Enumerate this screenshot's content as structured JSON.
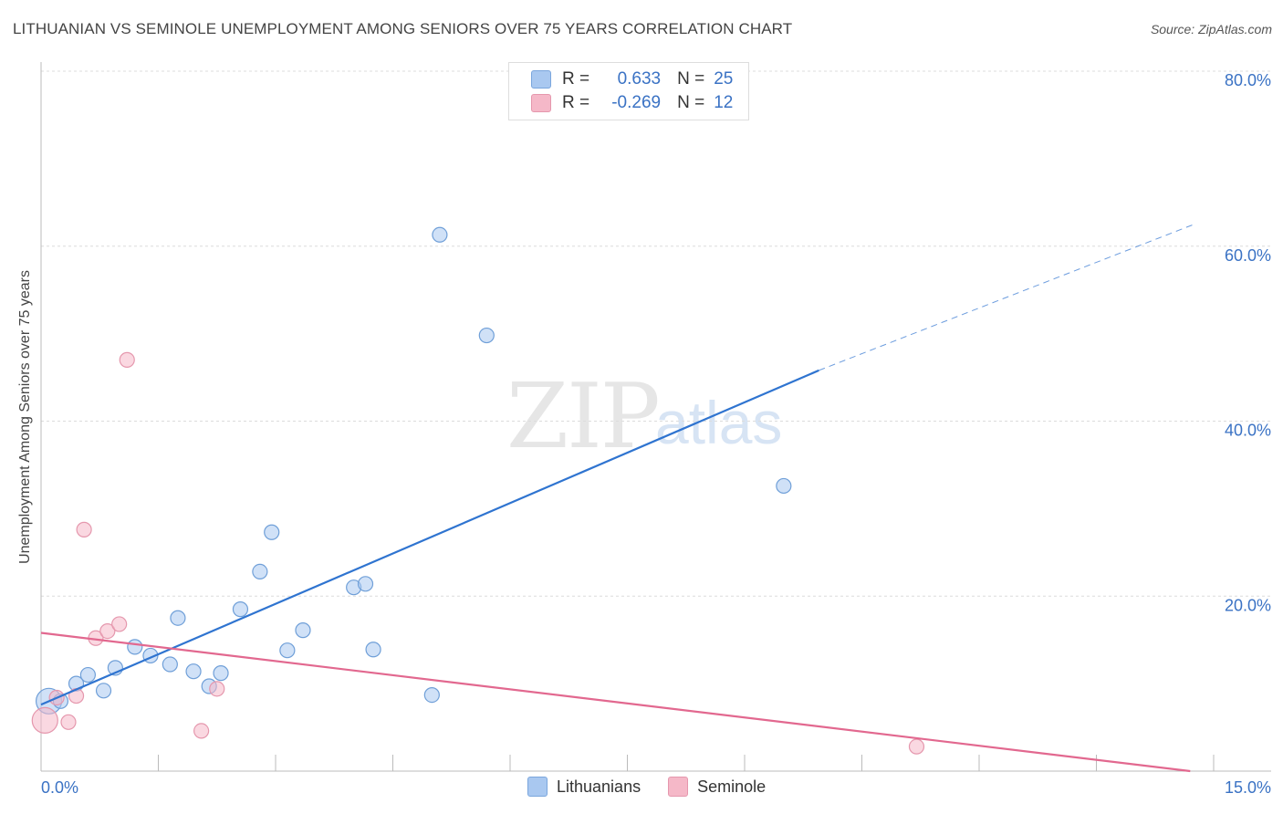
{
  "header": {
    "title": "LITHUANIAN VS SEMINOLE UNEMPLOYMENT AMONG SENIORS OVER 75 YEARS CORRELATION CHART",
    "source": "Source: ZipAtlas.com"
  },
  "watermark": {
    "part1": "ZIP",
    "part2": "atlas"
  },
  "legend": {
    "rows": [
      {
        "r_label": "R =",
        "r_value": "0.633",
        "n_label": "N =",
        "n_value": "25",
        "color": "#a9c8f0"
      },
      {
        "r_label": "R =",
        "r_value": "-0.269",
        "n_label": "N =",
        "n_value": "12",
        "color": "#f5b8c8"
      }
    ]
  },
  "bottom_legend": {
    "items": [
      {
        "label": "Lithuanians",
        "color": "#a9c8f0"
      },
      {
        "label": "Seminole",
        "color": "#f5b8c8"
      }
    ]
  },
  "chart_data": {
    "type": "scatter",
    "title": "LITHUANIAN VS SEMINOLE UNEMPLOYMENT AMONG SENIORS OVER 75 YEARS CORRELATION CHART",
    "xlabel": "",
    "ylabel": "Unemployment Among Seniors over 75 years",
    "xlim": [
      0,
      15
    ],
    "ylim": [
      0,
      80
    ],
    "x_tick_labels": [
      {
        "value": 0,
        "label": "0.0%"
      },
      {
        "value": 15,
        "label": "15.0%"
      }
    ],
    "y_tick_labels": [
      {
        "value": 20,
        "label": "20.0%"
      },
      {
        "value": 40,
        "label": "40.0%"
      },
      {
        "value": 60,
        "label": "60.0%"
      },
      {
        "value": 80,
        "label": "80.0%"
      }
    ],
    "grid": true,
    "series": [
      {
        "name": "Lithuanians",
        "color": "#a9c8f0",
        "stroke": "#6f9fd8",
        "line_color": "#2f74d0",
        "points": [
          {
            "x": 0.1,
            "y": 8.0,
            "big": true
          },
          {
            "x": 0.25,
            "y": 8.0
          },
          {
            "x": 0.45,
            "y": 10.0
          },
          {
            "x": 0.6,
            "y": 11.0
          },
          {
            "x": 0.8,
            "y": 9.2
          },
          {
            "x": 0.95,
            "y": 11.8
          },
          {
            "x": 1.2,
            "y": 14.2
          },
          {
            "x": 1.4,
            "y": 13.2
          },
          {
            "x": 1.65,
            "y": 12.2
          },
          {
            "x": 1.75,
            "y": 17.5
          },
          {
            "x": 1.95,
            "y": 11.4
          },
          {
            "x": 2.15,
            "y": 9.7
          },
          {
            "x": 2.3,
            "y": 11.2
          },
          {
            "x": 2.55,
            "y": 18.5
          },
          {
            "x": 2.8,
            "y": 22.8
          },
          {
            "x": 2.95,
            "y": 27.3
          },
          {
            "x": 3.15,
            "y": 13.8
          },
          {
            "x": 3.35,
            "y": 16.1
          },
          {
            "x": 4.0,
            "y": 21.0
          },
          {
            "x": 4.15,
            "y": 21.4
          },
          {
            "x": 4.25,
            "y": 13.9
          },
          {
            "x": 5.0,
            "y": 8.7
          },
          {
            "x": 5.1,
            "y": 61.3
          },
          {
            "x": 5.7,
            "y": 49.8
          },
          {
            "x": 9.5,
            "y": 32.6
          }
        ],
        "trend": {
          "x0": 0,
          "y0": 7.6,
          "x1": 9.95,
          "y1": 45.8,
          "dash_x1": 14.75,
          "dash_y1": 62.5
        }
      },
      {
        "name": "Seminole",
        "color": "#f5b8c8",
        "stroke": "#e597ad",
        "line_color": "#e2688f",
        "points": [
          {
            "x": 0.05,
            "y": 5.8,
            "big": true
          },
          {
            "x": 0.2,
            "y": 8.4
          },
          {
            "x": 0.35,
            "y": 5.6
          },
          {
            "x": 0.45,
            "y": 8.6
          },
          {
            "x": 0.55,
            "y": 27.6
          },
          {
            "x": 0.7,
            "y": 15.2
          },
          {
            "x": 0.85,
            "y": 16.0
          },
          {
            "x": 1.0,
            "y": 16.8
          },
          {
            "x": 1.1,
            "y": 47.0
          },
          {
            "x": 2.05,
            "y": 4.6
          },
          {
            "x": 2.25,
            "y": 9.4
          },
          {
            "x": 11.2,
            "y": 2.8
          }
        ],
        "trend": {
          "x0": 0,
          "y0": 15.8,
          "x1": 14.7,
          "y1": 0
        }
      }
    ]
  }
}
